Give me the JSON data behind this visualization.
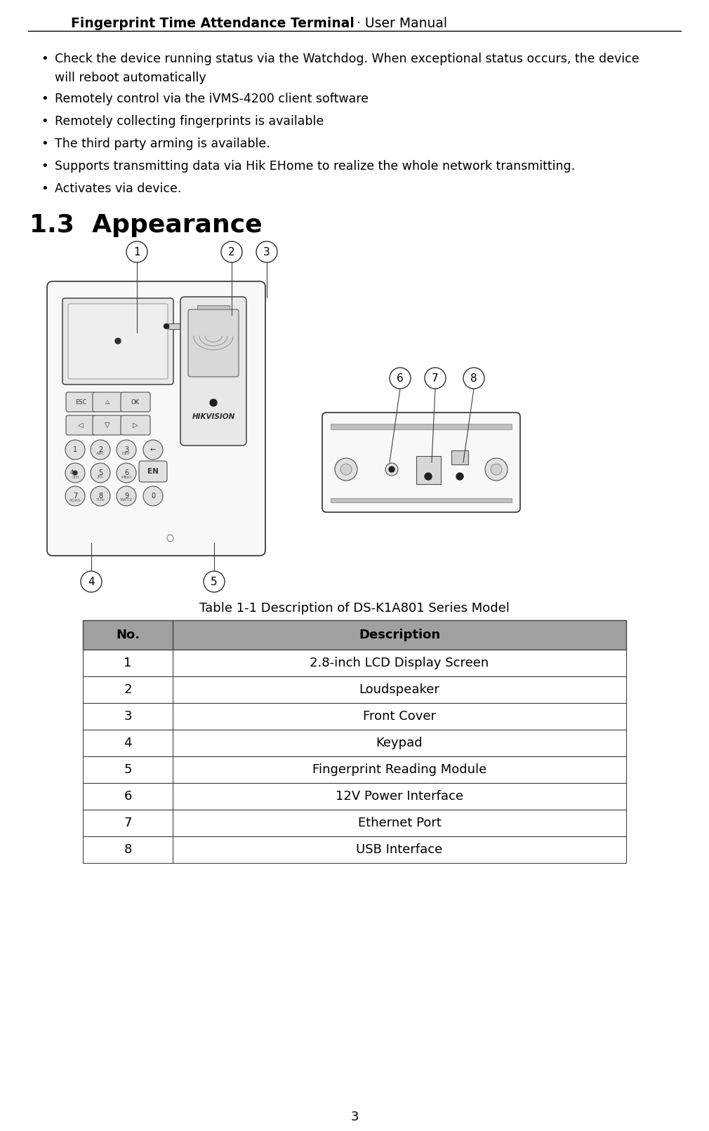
{
  "title_bold": "Fingerprint Time Attendance Terminal",
  "title_sep": "·",
  "title_normal": " User Manual",
  "bullets": [
    "Check the device running status via the Watchdog. When exceptional status occurs, the device\nwill reboot automatically",
    "Remotely control via the iVMS-4200 client software",
    "Remotely collecting fingerprints is available",
    "The third party arming is available.",
    "Supports transmitting data via Hik EHome to realize the whole network transmitting.",
    "Activates via device."
  ],
  "section_heading_num": "1.3",
  "section_heading_text": "  Appearance",
  "table_title": "Table 1-1 Description of DS-K1A801 Series Model",
  "table_header": [
    "No.",
    "Description"
  ],
  "table_rows": [
    [
      "1",
      "2.8-inch LCD Display Screen"
    ],
    [
      "2",
      "Loudspeaker"
    ],
    [
      "3",
      "Front Cover"
    ],
    [
      "4",
      "Keypad"
    ],
    [
      "5",
      "Fingerprint Reading Module"
    ],
    [
      "6",
      "12V Power Interface"
    ],
    [
      "7",
      "Ethernet Port"
    ],
    [
      "8",
      "USB Interface"
    ]
  ],
  "header_bg": "#a0a0a0",
  "table_border": "#404040",
  "page_number": "3",
  "bg_color": "#ffffff",
  "text_color": "#000000",
  "device_edge": "#303030",
  "device_fill": "#f8f8f8",
  "device_mid": "#e8e8e8"
}
